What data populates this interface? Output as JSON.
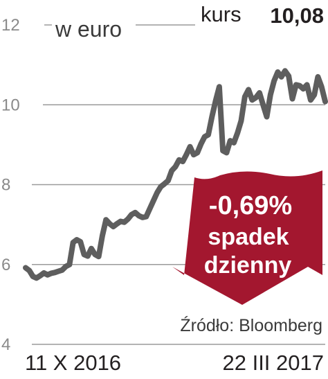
{
  "chart_data": {
    "type": "line",
    "unit_label": "w euro",
    "price": {
      "prefix": "kurs",
      "value": "10,08"
    },
    "badge": {
      "change": "-0,69%",
      "line1": "spadek",
      "line2": "dzienny",
      "color": "#a3172f"
    },
    "source": "Źródło: Bloomberg",
    "x_start_label": "11 X 2016",
    "x_end_label": "22 III 2017",
    "ylim": [
      4,
      12
    ],
    "yticks": [
      4,
      6,
      8,
      10,
      12
    ],
    "ytick_labels": [
      "4",
      "6",
      "8",
      "10",
      "12"
    ],
    "grid": true,
    "series": [
      {
        "color": "#5e5e5e",
        "values": [
          5.92,
          5.85,
          5.7,
          5.66,
          5.72,
          5.79,
          5.74,
          5.78,
          5.8,
          5.83,
          5.86,
          5.95,
          6.0,
          6.55,
          6.62,
          6.57,
          6.25,
          6.21,
          6.4,
          6.25,
          6.2,
          6.72,
          7.12,
          7.02,
          6.95,
          7.02,
          7.08,
          7.06,
          7.14,
          7.25,
          7.3,
          7.22,
          7.18,
          7.2,
          7.4,
          7.6,
          7.8,
          7.95,
          8.02,
          8.1,
          8.35,
          8.45,
          8.62,
          8.58,
          8.75,
          8.95,
          8.75,
          8.8,
          9.02,
          9.2,
          9.25,
          9.7,
          10.1,
          10.45,
          8.85,
          8.8,
          9.1,
          9.05,
          9.3,
          9.6,
          10.2,
          10.38,
          10.12,
          10.18,
          10.3,
          10.0,
          9.7,
          10.25,
          10.6,
          10.82,
          10.7,
          10.85,
          10.72,
          10.15,
          10.5,
          10.48,
          10.4,
          10.5,
          10.12,
          10.25,
          10.7,
          10.45,
          10.08
        ]
      }
    ]
  }
}
